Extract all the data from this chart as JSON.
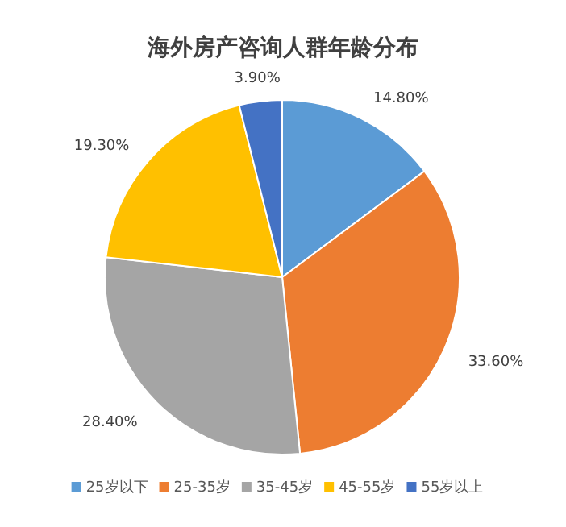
{
  "chart_data": {
    "type": "pie",
    "title": "海外房产咨询人群年龄分布",
    "categories": [
      "25岁以下",
      "25-35岁",
      "35-45岁",
      "45-55岁",
      "55岁以上"
    ],
    "values": [
      14.8,
      33.6,
      28.4,
      19.3,
      3.9
    ],
    "value_labels": [
      "14.80%",
      "33.60%",
      "28.40%",
      "19.30%",
      "3.90%"
    ],
    "colors": [
      "#5b9bd5",
      "#ed7d31",
      "#a5a5a5",
      "#ffc000",
      "#4472c4"
    ],
    "legend": "bottom"
  }
}
